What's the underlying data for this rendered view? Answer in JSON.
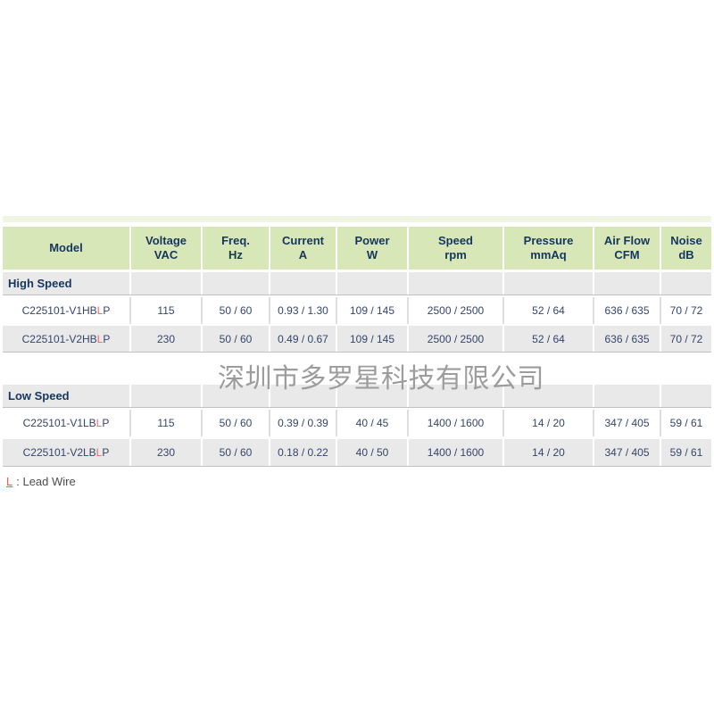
{
  "watermark": "深圳市多罗星科技有限公司",
  "footer": {
    "lead": "L",
    "text": ": Lead Wire"
  },
  "colors": {
    "header_bg": "#d7e7b7",
    "header_text": "#17365d",
    "section_row_bg": "#e9e9e9",
    "alt_row_bg": "#e9e9e9",
    "data_text": "#35446b",
    "accent_red": "#ee6a6a",
    "separator_line": "#c0c0c0",
    "watermark_gray": "#9c9c9c",
    "top_strip": "#eff5e2"
  },
  "table": {
    "headers": [
      {
        "title": "Model",
        "unit": ""
      },
      {
        "title": "Voltage",
        "unit": "VAC"
      },
      {
        "title": "Freq.",
        "unit": "Hz"
      },
      {
        "title": "Current",
        "unit": "A"
      },
      {
        "title": "Power",
        "unit": "W"
      },
      {
        "title": "Speed",
        "unit": "rpm"
      },
      {
        "title": "Pressure",
        "unit": "mmAq"
      },
      {
        "title": "Air Flow",
        "unit": "CFM"
      },
      {
        "title": "Noise",
        "unit": "dB"
      }
    ],
    "sections": [
      {
        "label": "High Speed",
        "rows": [
          {
            "model_prefix": "C225101-V1HB",
            "model_lead": "L",
            "model_suffix": "P",
            "voltage": "115",
            "freq": "50 / 60",
            "current": "0.93 / 1.30",
            "power": "109 / 145",
            "speed": "2500 / 2500",
            "pressure": "52 / 64",
            "airflow": "636 / 635",
            "noise": "70 / 72"
          },
          {
            "model_prefix": "C225101-V2HB",
            "model_lead": "L",
            "model_suffix": "P",
            "voltage": "230",
            "freq": "50 / 60",
            "current": "0.49 / 0.67",
            "power": "109 / 145",
            "speed": "2500 / 2500",
            "pressure": "52 / 64",
            "airflow": "636 / 635",
            "noise": "70 / 72"
          }
        ]
      },
      {
        "label": "Low Speed",
        "rows": [
          {
            "model_prefix": "C225101-V1LB",
            "model_lead": "L",
            "model_suffix": "P",
            "voltage": "115",
            "freq": "50 / 60",
            "current": "0.39 / 0.39",
            "power": "40 / 45",
            "speed": "1400 / 1600",
            "pressure": "14 / 20",
            "airflow": "347 / 405",
            "noise": "59 / 61"
          },
          {
            "model_prefix": "C225101-V2LB",
            "model_lead": "L",
            "model_suffix": "P",
            "voltage": "230",
            "freq": "50 / 60",
            "current": "0.18 / 0.22",
            "power": "40 / 50",
            "speed": "1400 / 1600",
            "pressure": "14 / 20",
            "airflow": "347 / 405",
            "noise": "59 / 61"
          }
        ]
      }
    ]
  }
}
